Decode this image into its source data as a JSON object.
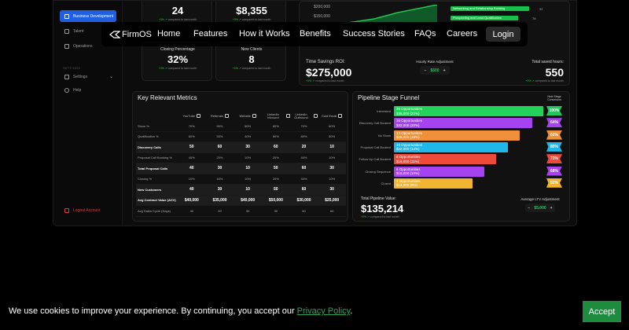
{
  "sidebar": {
    "items": [
      {
        "label": "Business Development"
      },
      {
        "label": "Talent"
      },
      {
        "label": "Operations"
      }
    ],
    "section_label": "SETTINGS",
    "settings_label": "Settings",
    "help_label": "Help",
    "logout_label": "Logout Account"
  },
  "stats": [
    {
      "label": "",
      "value": "24",
      "change": "+0% ↗",
      "compare": "compared to last month"
    },
    {
      "label": "",
      "value": "$8,355",
      "change": "+0% ↗",
      "compare": "compared to last month"
    },
    {
      "label": "Closing Percentage",
      "value": "32%",
      "change": "+0% ↗",
      "compare": "compared to last month"
    },
    {
      "label": "New Clients",
      "value": "8",
      "change": "+0% ↗",
      "compare": "compared to last month"
    }
  ],
  "roi_chart": {
    "y_labels": [
      "$200,000",
      "$150,000"
    ],
    "bars": [
      {
        "label": "Networking and Relationship Building",
        "value": "92"
      },
      {
        "label": "Prospecting and Lead Qualification",
        "value": "78"
      }
    ]
  },
  "roi": {
    "time_savings_label": "Time Savings ROI:",
    "time_savings_value": "$275,000",
    "time_change": "+0% ↗",
    "time_compare": "compared to last month",
    "hourly_label": "Hourly Rate Adjustment",
    "hourly_value": "$500",
    "hours_label": "Total saved hours:",
    "hours_value": "550",
    "hours_change": "+0% ↗",
    "hours_compare": "compared to last month"
  },
  "metrics": {
    "title": "Key Relevant Metrics",
    "columns": [
      "YouTube",
      "Referrals",
      "Website",
      "LinkedIn Inbound",
      "LinkedIn Outbound",
      "Cold Email"
    ],
    "rows": [
      {
        "label": "Show %",
        "values": [
          "70%",
          "90%",
          "80%",
          "80%",
          "70%",
          "60%"
        ],
        "hl": false
      },
      {
        "label": "Qualification %",
        "values": [
          "60%",
          "50%",
          "40%",
          "60%",
          "80%",
          "80%"
        ],
        "hl": false
      },
      {
        "label": "Discovery Calls",
        "values": [
          "50",
          "60",
          "30",
          "60",
          "20",
          "10"
        ],
        "hl": true
      },
      {
        "label": "Proposal Call Booking %",
        "values": [
          "40%",
          "20%",
          "10%",
          "20%",
          "40%",
          "10%"
        ],
        "hl": false
      },
      {
        "label": "Total Proposal Calls",
        "values": [
          "40",
          "30",
          "10",
          "50",
          "60",
          "30"
        ],
        "hl": true
      },
      {
        "label": "Closing %",
        "values": [
          "10%",
          "40%",
          "10%",
          "20%",
          "40%",
          "10%"
        ],
        "hl": false
      },
      {
        "label": "New Customers",
        "values": [
          "40",
          "30",
          "10",
          "50",
          "60",
          "30"
        ],
        "hl": true
      },
      {
        "label": "Avg Contract Value (ACV)",
        "values": [
          "$40,000",
          "$35,000",
          "$40,000",
          "$50,000",
          "$30,000",
          "$25,000"
        ],
        "hl": true
      },
      {
        "label": "Avg Sales Cycle (Days)",
        "values": [
          "40",
          "20",
          "30",
          "30",
          "50",
          "60"
        ],
        "hl": false
      }
    ]
  },
  "funnel": {
    "title": "Pipeline Stage Funnel",
    "next_stage_label": "Next Stage Conversion",
    "stages": [
      {
        "label": "Interested",
        "count": "25 Opportunities",
        "value": "$35,000 (22%)",
        "conv": "100%",
        "bar_color": "#22d25a",
        "conv_color": "#22c55e",
        "width": 190
      },
      {
        "label": "Discovery Call Booked",
        "count": "16 Opportunities",
        "value": "$32,000 (20%)",
        "conv": "64%",
        "bar_color": "#a543f0",
        "conv_color": "#a543f0",
        "width": 176
      },
      {
        "label": "No Show",
        "count": "12 Opportunities",
        "value": "$28,000 (18%)",
        "conv": "62%",
        "bar_color": "#f0913a",
        "conv_color": "#f0913a",
        "width": 160
      },
      {
        "label": "Proposal Call Booked",
        "count": "10 Opportunities",
        "value": "$22,000 (14%)",
        "conv": "80%",
        "bar_color": "#1fb8e8",
        "conv_color": "#1fb8e8",
        "width": 145
      },
      {
        "label": "Follow Up Call Booked",
        "count": "8 Opportunities",
        "value": "$16,000 (11%)",
        "conv": "73%",
        "bar_color": "#ee4a3a",
        "conv_color": "#ee4a3a",
        "width": 130
      },
      {
        "label": "Closing Sequence",
        "count": "6 Opportunities",
        "value": "$16,000 (10%)",
        "conv": "68%",
        "bar_color": "#a543f0",
        "conv_color": "#a543f0",
        "width": 115
      },
      {
        "label": "Closed",
        "count": "4 Opportunities",
        "value": "$14,000 (8%)",
        "conv": "52%",
        "bar_color": "#f2b531",
        "conv_color": "#f2b531",
        "width": 100
      }
    ],
    "total_label": "Total Pipeline Value:",
    "total_value": "$135,214",
    "total_change": "+0% ↗",
    "total_compare": "compared to last month",
    "ltv_label": "Average LTV Adjustment",
    "ltv_value": "$5,000"
  },
  "nav": {
    "logo": "FirmOS",
    "links": [
      "Home",
      "Features",
      "How it Works",
      "Benefits",
      "Success Stories",
      "FAQs",
      "Careers"
    ],
    "login": "Login"
  },
  "cookie": {
    "text": "We use cookies to improve your experience. By continuing, you accept our ",
    "link": "Privacy Policy",
    "end": ".",
    "accept": "Accept"
  }
}
